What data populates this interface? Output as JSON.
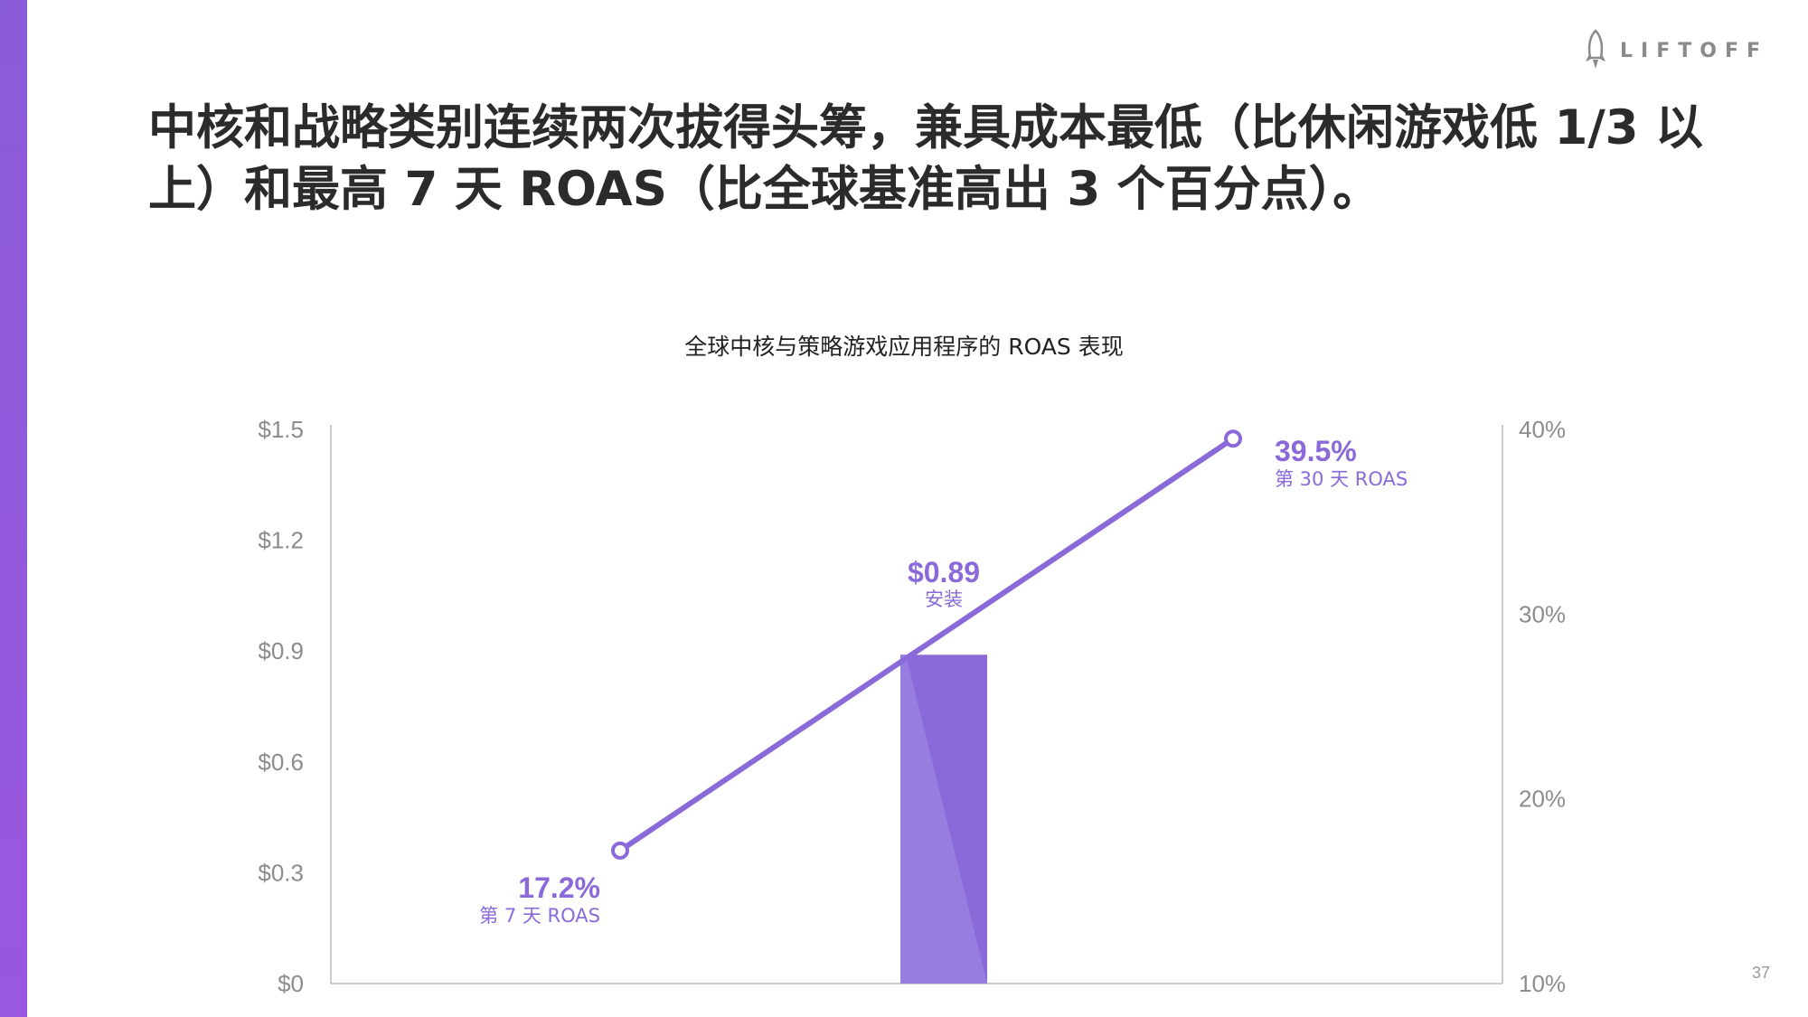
{
  "brand": {
    "logo_text": "LIFTOFF"
  },
  "headline": "中核和战略类别连续两次拔得头筹，兼具成本最低（比休闲游戏低 1/3 以上）和最高 7 天 ROAS（比全球基准高出 3 个百分点）。",
  "page_number": "37",
  "colors": {
    "sidebar": "#9057de",
    "series": "#8a6ad8",
    "bar": "#8a6ad8",
    "bar_highlight": "#9a80e2",
    "axis_text": "#8c8c8c",
    "axis_line": "#cccccc"
  },
  "chart_data": {
    "type": "bar+line",
    "title": "全球中核与策略游戏应用程序的 ROAS 表现",
    "left_axis": {
      "ticks": [
        "$0",
        "$0.3",
        "$0.6",
        "$0.9",
        "$1.2",
        "$1.5"
      ],
      "ylim": [
        0,
        1.5
      ]
    },
    "right_axis": {
      "ticks": [
        "10%",
        "20%",
        "30%",
        "40%"
      ],
      "ylim": [
        10,
        40
      ]
    },
    "grid": false,
    "bar": {
      "category": "安装",
      "value": 0.89,
      "value_label": "$0.89",
      "label": "安装"
    },
    "line": {
      "points": [
        {
          "x": "第 7 天 ROAS",
          "y": 17.2,
          "value_label": "17.2%",
          "label": "第 7 天 ROAS"
        },
        {
          "x": "第 30 天 ROAS",
          "y": 39.5,
          "value_label": "39.5%",
          "label": "第 30 天 ROAS"
        }
      ]
    }
  }
}
